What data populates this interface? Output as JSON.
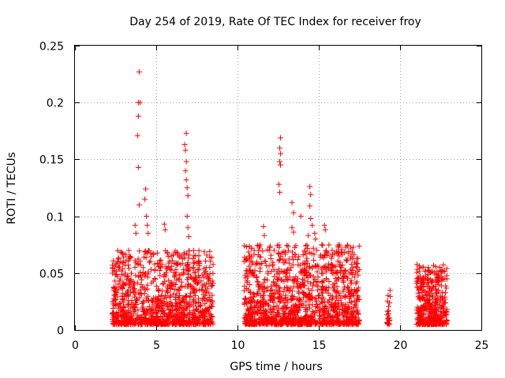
{
  "chart_data": {
    "type": "scatter",
    "title": "Day 254 of 2019, Rate Of TEC Index for receiver froy",
    "xlabel": "GPS time / hours",
    "ylabel": "ROTI / TECUs",
    "xlim": [
      0,
      25
    ],
    "ylim": [
      0,
      0.25
    ],
    "xticks": [
      "0",
      "5",
      "10",
      "15",
      "20",
      "25"
    ],
    "yticks": [
      "0",
      "0.05",
      "0.1",
      "0.15",
      "0.2",
      "0.25"
    ],
    "grid": true,
    "marker": "+",
    "color": "#ff0000",
    "series": [
      {
        "name": "ROTI",
        "points": [
          [
            3.95,
            0.227
          ],
          [
            3.9,
            0.2
          ],
          [
            4.0,
            0.2
          ],
          [
            3.9,
            0.188
          ],
          [
            3.85,
            0.171
          ],
          [
            3.9,
            0.143
          ],
          [
            4.35,
            0.124
          ],
          [
            4.3,
            0.115
          ],
          [
            3.95,
            0.11
          ],
          [
            4.4,
            0.1
          ],
          [
            4.45,
            0.092
          ],
          [
            4.5,
            0.085
          ],
          [
            3.7,
            0.092
          ],
          [
            3.75,
            0.085
          ],
          [
            5.5,
            0.093
          ],
          [
            5.55,
            0.088
          ],
          [
            6.85,
            0.173
          ],
          [
            6.75,
            0.163
          ],
          [
            6.8,
            0.158
          ],
          [
            6.85,
            0.148
          ],
          [
            6.8,
            0.14
          ],
          [
            6.85,
            0.132
          ],
          [
            6.9,
            0.125
          ],
          [
            6.95,
            0.118
          ],
          [
            6.9,
            0.1
          ],
          [
            6.95,
            0.09
          ],
          [
            7.0,
            0.082
          ],
          [
            12.65,
            0.169
          ],
          [
            12.6,
            0.16
          ],
          [
            12.65,
            0.155
          ],
          [
            12.6,
            0.148
          ],
          [
            12.65,
            0.145
          ],
          [
            12.55,
            0.128
          ],
          [
            12.6,
            0.121
          ],
          [
            13.35,
            0.112
          ],
          [
            13.45,
            0.103
          ],
          [
            13.9,
            0.1
          ],
          [
            14.45,
            0.126
          ],
          [
            14.5,
            0.119
          ],
          [
            14.45,
            0.109
          ],
          [
            14.5,
            0.098
          ],
          [
            14.6,
            0.092
          ],
          [
            14.35,
            0.083
          ],
          [
            15.35,
            0.092
          ],
          [
            15.4,
            0.088
          ],
          [
            11.6,
            0.091
          ],
          [
            11.65,
            0.083
          ],
          [
            13.35,
            0.09
          ],
          [
            13.45,
            0.086
          ],
          [
            14.75,
            0.085
          ],
          [
            14.8,
            0.08
          ]
        ]
      }
    ],
    "clusters": [
      {
        "x_range": [
          2.3,
          8.5
        ],
        "y_max": 0.07,
        "count": 1100
      },
      {
        "x_range": [
          10.4,
          17.5
        ],
        "y_max": 0.075,
        "count": 1300
      },
      {
        "x_range": [
          19.2,
          19.4
        ],
        "y_max": 0.036,
        "count": 25
      },
      {
        "x_range": [
          21.0,
          22.9
        ],
        "y_max": 0.058,
        "count": 420
      }
    ]
  }
}
